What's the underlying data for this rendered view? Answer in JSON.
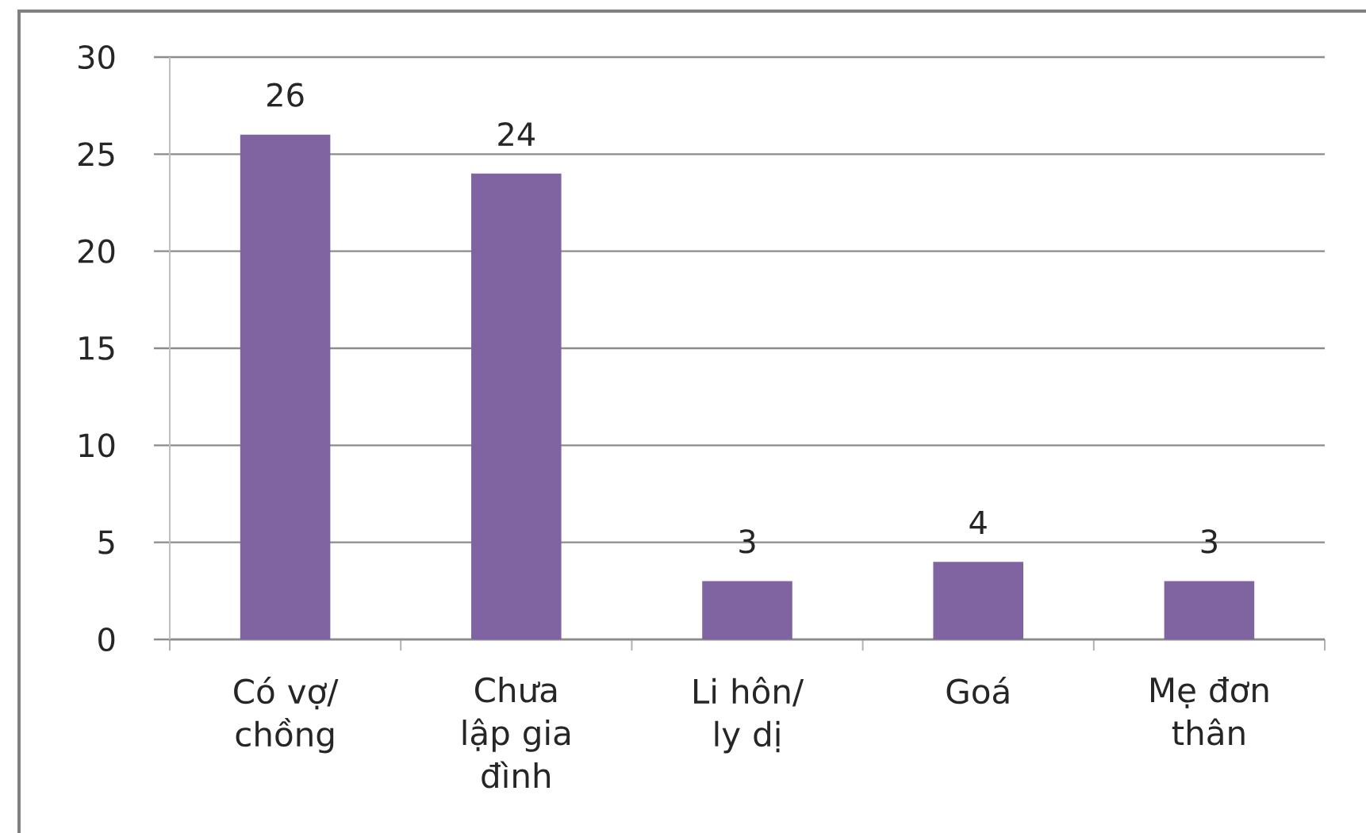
{
  "chart_data": {
    "type": "bar",
    "categories": [
      "Có vợ/ chồng",
      "Chưa lập gia đình",
      "Li hôn/ ly dị",
      "Goá",
      "Mẹ đơn thân"
    ],
    "values": [
      26,
      24,
      3,
      4,
      3
    ],
    "color": "#8064a2",
    "ylim": [
      0,
      30
    ],
    "yticks": [
      0,
      5,
      10,
      15,
      20,
      25,
      30
    ],
    "grid": "y",
    "data_labels": true
  }
}
